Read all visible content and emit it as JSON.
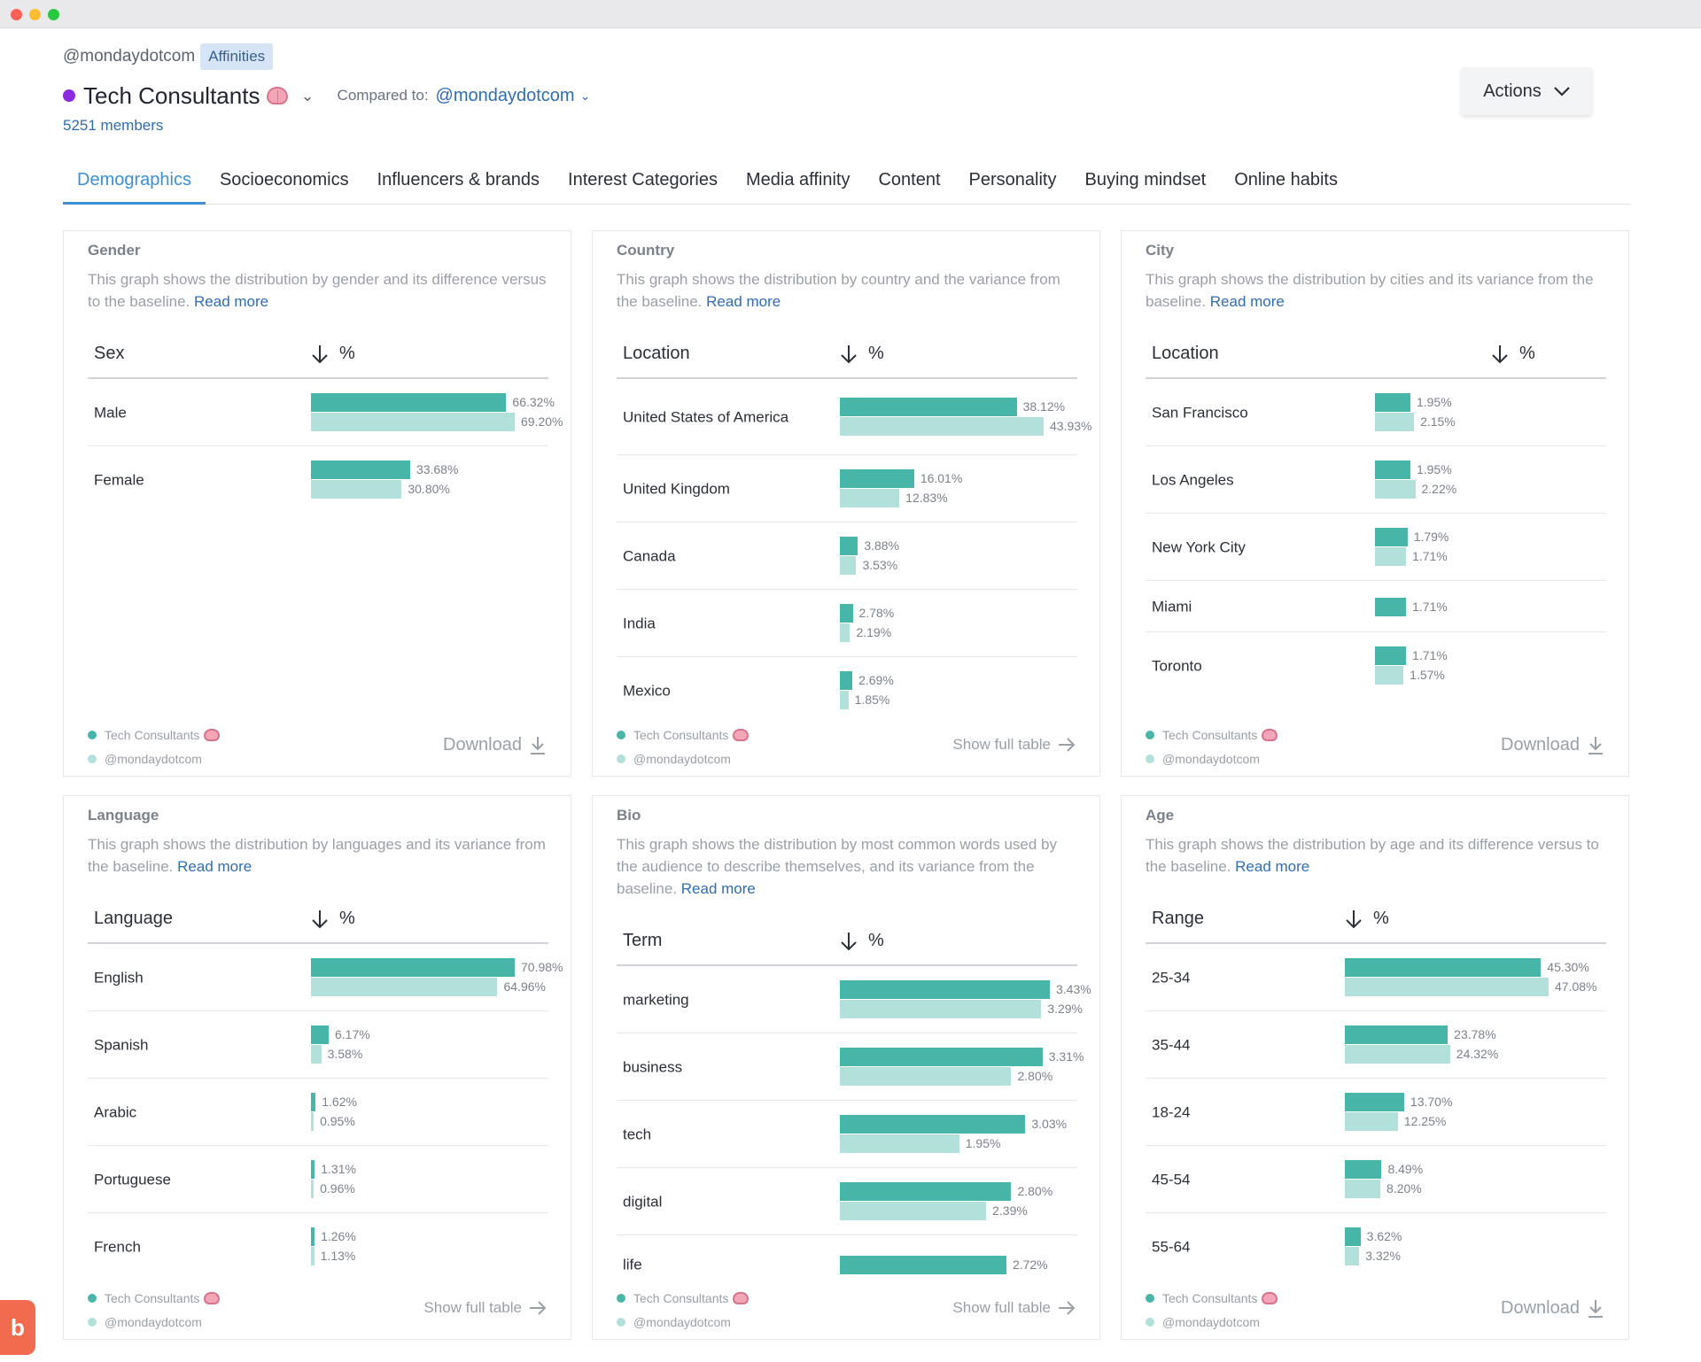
{
  "window": {
    "controls": [
      "close",
      "minimize",
      "maximize"
    ]
  },
  "header": {
    "handle": "@mondaydotcom",
    "chip": "Affinities",
    "title": "Tech Consultants",
    "compared_label": "Compared to:",
    "compared_value": "@mondaydotcom",
    "members": "5251 members",
    "actions_label": "Actions"
  },
  "tabs": [
    "Demographics",
    "Socioeconomics",
    "Influencers & brands",
    "Interest Categories",
    "Media affinity",
    "Content",
    "Personality",
    "Buying mindset",
    "Online habits"
  ],
  "legend": {
    "a": "Tech Consultants",
    "b": "@mondaydotcom"
  },
  "links": {
    "download": "Download",
    "show_full": "Show full table",
    "read_more": "Read more"
  },
  "colors": {
    "primary": "#47b6a9",
    "baseline": "#b2e0da",
    "accent": "#3b8fd4",
    "link": "#2f6db5",
    "audience_dot": "#8a2be2"
  },
  "cards": [
    {
      "title": "Gender",
      "desc": "This graph shows the distribution by gender and its difference versus to the baseline.",
      "col1": "Sex",
      "col2": "%",
      "footer": "download",
      "rows": [
        {
          "label": "Male",
          "a": 66.32,
          "b": 69.2,
          "a_text": "66.32%",
          "b_text": "69.20%"
        },
        {
          "label": "Female",
          "a": 33.68,
          "b": 30.8,
          "a_text": "33.68%",
          "b_text": "30.80%"
        }
      ]
    },
    {
      "title": "Country",
      "desc": "This graph shows the distribution by country and the variance from the baseline.",
      "col1": "Location",
      "col2": "%",
      "footer": "show_full",
      "rows": [
        {
          "label": "United States of America",
          "a": 38.12,
          "b": 43.93,
          "a_text": "38.12%",
          "b_text": "43.93%"
        },
        {
          "label": "United Kingdom",
          "a": 16.01,
          "b": 12.83,
          "a_text": "16.01%",
          "b_text": "12.83%"
        },
        {
          "label": "Canada",
          "a": 3.88,
          "b": 3.53,
          "a_text": "3.88%",
          "b_text": "3.53%"
        },
        {
          "label": "India",
          "a": 2.78,
          "b": 2.19,
          "a_text": "2.78%",
          "b_text": "2.19%"
        },
        {
          "label": "Mexico",
          "a": 2.69,
          "b": 1.85,
          "a_text": "2.69%",
          "b_text": "1.85%"
        }
      ]
    },
    {
      "title": "City",
      "desc": "This graph shows the distribution by cities and its variance from the baseline.",
      "col1": "Location",
      "col2": "%",
      "footer": "download",
      "rows": [
        {
          "label": "San Francisco",
          "a": 1.95,
          "b": 2.15,
          "a_text": "1.95%",
          "b_text": "2.15%"
        },
        {
          "label": "Los Angeles",
          "a": 1.95,
          "b": 2.22,
          "a_text": "1.95%",
          "b_text": "2.22%"
        },
        {
          "label": "New York City",
          "a": 1.79,
          "b": 1.71,
          "a_text": "1.79%",
          "b_text": "1.71%"
        },
        {
          "label": "Miami",
          "a": 1.71,
          "b": null,
          "a_text": "1.71%",
          "b_text": null
        },
        {
          "label": "Toronto",
          "a": 1.71,
          "b": 1.57,
          "a_text": "1.71%",
          "b_text": "1.57%"
        }
      ]
    },
    {
      "title": "Language",
      "desc": "This graph shows the distribution by languages and its variance from the baseline.",
      "col1": "Language",
      "col2": "%",
      "footer": "show_full",
      "rows": [
        {
          "label": "English",
          "a": 70.98,
          "b": 64.96,
          "a_text": "70.98%",
          "b_text": "64.96%"
        },
        {
          "label": "Spanish",
          "a": 6.17,
          "b": 3.58,
          "a_text": "6.17%",
          "b_text": "3.58%"
        },
        {
          "label": "Arabic",
          "a": 1.62,
          "b": 0.95,
          "a_text": "1.62%",
          "b_text": "0.95%"
        },
        {
          "label": "Portuguese",
          "a": 1.31,
          "b": 0.96,
          "a_text": "1.31%",
          "b_text": "0.96%"
        },
        {
          "label": "French",
          "a": 1.26,
          "b": 1.13,
          "a_text": "1.26%",
          "b_text": "1.13%"
        }
      ]
    },
    {
      "title": "Bio",
      "desc": "This graph shows the distribution by most common words used by the audience to describe themselves, and its variance from the baseline.",
      "col1": "Term",
      "col2": "%",
      "footer": "show_full",
      "rows": [
        {
          "label": "marketing",
          "a": 3.43,
          "b": 3.29,
          "a_text": "3.43%",
          "b_text": "3.29%"
        },
        {
          "label": "business",
          "a": 3.31,
          "b": 2.8,
          "a_text": "3.31%",
          "b_text": "2.80%"
        },
        {
          "label": "tech",
          "a": 3.03,
          "b": 1.95,
          "a_text": "3.03%",
          "b_text": "1.95%"
        },
        {
          "label": "digital",
          "a": 2.8,
          "b": 2.39,
          "a_text": "2.80%",
          "b_text": "2.39%"
        },
        {
          "label": "life",
          "a": 2.72,
          "b": null,
          "a_text": "2.72%",
          "b_text": null
        }
      ]
    },
    {
      "title": "Age",
      "desc": "This graph shows the distribution by age and its difference versus to the baseline.",
      "col1": "Range",
      "col2": "%",
      "footer": "download",
      "rows": [
        {
          "label": "25-34",
          "a": 45.3,
          "b": 47.08,
          "a_text": "45.30%",
          "b_text": "47.08%"
        },
        {
          "label": "35-44",
          "a": 23.78,
          "b": 24.32,
          "a_text": "23.78%",
          "b_text": "24.32%"
        },
        {
          "label": "18-24",
          "a": 13.7,
          "b": 12.25,
          "a_text": "13.70%",
          "b_text": "12.25%"
        },
        {
          "label": "45-54",
          "a": 8.49,
          "b": 8.2,
          "a_text": "8.49%",
          "b_text": "8.20%"
        },
        {
          "label": "55-64",
          "a": 3.62,
          "b": 3.32,
          "a_text": "3.62%",
          "b_text": "3.32%"
        }
      ]
    }
  ],
  "help_button": "b"
}
